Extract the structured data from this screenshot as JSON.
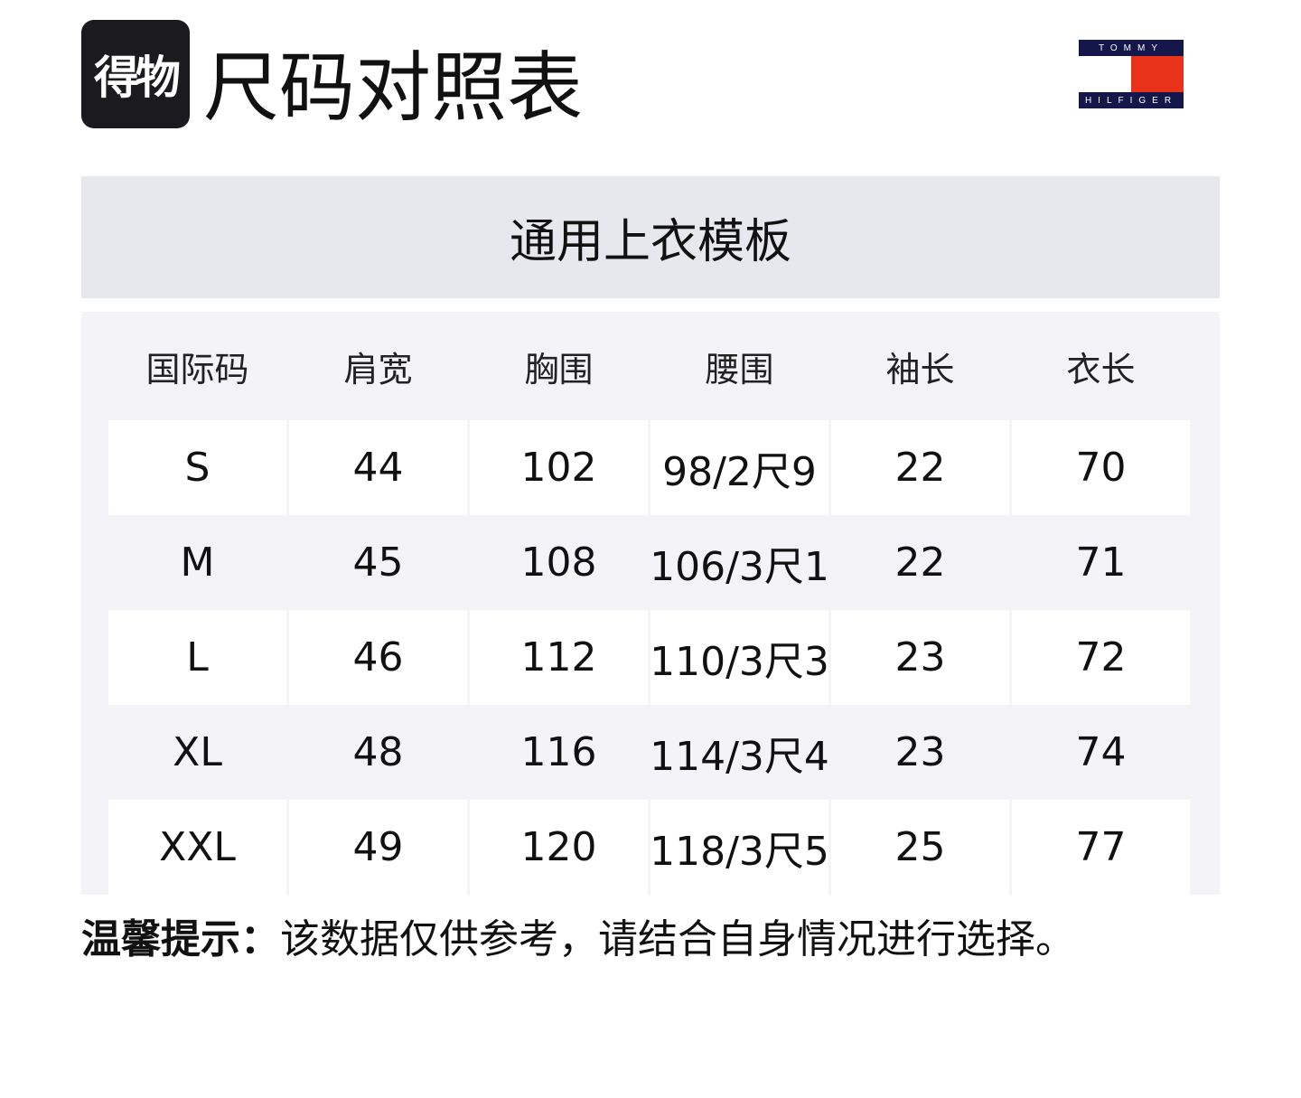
{
  "header": {
    "logo_text": "得物",
    "title": "尺码对照表",
    "brand_logo": {
      "top": "TOMMY",
      "bottom": "HILFIGER",
      "colors": {
        "navy": "#15174a",
        "red": "#e8321a"
      }
    }
  },
  "banner": {
    "title": "通用上衣模板"
  },
  "table": {
    "columns": [
      "国际码",
      "肩宽",
      "胸围",
      "腰围",
      "袖长",
      "衣长"
    ],
    "rows": [
      [
        "S",
        "44",
        "102",
        "98/2尺9",
        "22",
        "70"
      ],
      [
        "M",
        "45",
        "108",
        "106/3尺1",
        "22",
        "71"
      ],
      [
        "L",
        "46",
        "112",
        "110/3尺3",
        "23",
        "72"
      ],
      [
        "XL",
        "48",
        "116",
        "114/3尺4",
        "23",
        "74"
      ],
      [
        "XXL",
        "49",
        "120",
        "118/3尺5",
        "25",
        "77"
      ]
    ]
  },
  "footer": {
    "label": "温馨提示：",
    "text": "该数据仅供参考，请结合自身情况进行选择。"
  }
}
